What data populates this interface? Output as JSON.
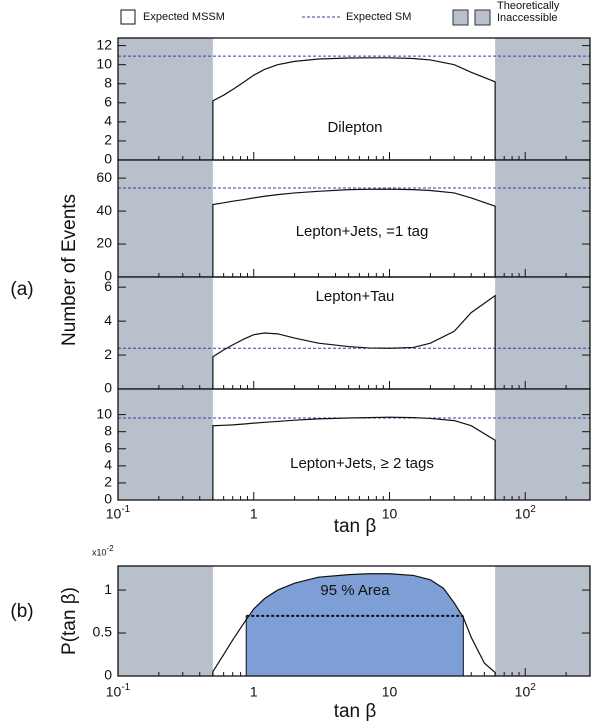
{
  "chart_data": [
    {
      "type": "line",
      "group_label": "(a)",
      "ylabel": "Number of Events",
      "xlabel": "tan β",
      "legend": {
        "mssm": "Expected MSSM",
        "sm": "Expected SM",
        "inaccessible": "Theoretically Inaccessible"
      },
      "mssm_color": "#111111",
      "sm_color": "#3b3ba8",
      "shade_color": "#b8c0cc",
      "xscale": "log",
      "xlim": [
        0.1,
        300
      ],
      "xticks": [
        {
          "value": 0.1,
          "label": "10",
          "exponent": "-1"
        },
        1,
        10,
        {
          "value": 100,
          "label": "10",
          "exponent": "2"
        }
      ],
      "inaccessible": [
        [
          0.1,
          0.5
        ],
        [
          60,
          300
        ]
      ],
      "x": [
        0.5,
        0.6,
        0.7,
        0.85,
        1,
        1.2,
        1.5,
        2,
        3,
        5,
        7,
        10,
        15,
        20,
        30,
        40,
        60
      ],
      "panels": [
        {
          "label": "Dilepton",
          "ylim": [
            0,
            12.8
          ],
          "yticks": [
            0,
            2,
            4,
            6,
            8,
            10,
            12
          ],
          "sm": 10.9,
          "values": [
            6.2,
            6.8,
            7.4,
            8.2,
            8.9,
            9.5,
            10.0,
            10.35,
            10.6,
            10.7,
            10.72,
            10.72,
            10.65,
            10.5,
            10.0,
            9.2,
            8.2
          ]
        },
        {
          "label": "Lepton+Jets, =1 tag",
          "ylim": [
            0,
            71
          ],
          "yticks": [
            0,
            20,
            40,
            60
          ],
          "sm": 54,
          "values": [
            44,
            45,
            46,
            47,
            48,
            49,
            50,
            51,
            52,
            53,
            53.2,
            53.3,
            53,
            52.5,
            51,
            48,
            43
          ]
        },
        {
          "label": "Lepton+Tau",
          "ylim": [
            0,
            6.6
          ],
          "yticks": [
            0,
            2,
            4,
            6
          ],
          "sm": 2.4,
          "values": [
            1.9,
            2.3,
            2.6,
            2.95,
            3.2,
            3.3,
            3.25,
            3.0,
            2.7,
            2.5,
            2.42,
            2.4,
            2.45,
            2.7,
            3.4,
            4.5,
            5.5
          ]
        },
        {
          "label": "Lepton+Jets, ≥ 2 tags",
          "ylim": [
            0,
            13
          ],
          "yticks": [
            0,
            2,
            4,
            6,
            8,
            10
          ],
          "sm": 9.6,
          "values": [
            8.7,
            8.75,
            8.8,
            8.9,
            9.0,
            9.1,
            9.2,
            9.35,
            9.5,
            9.6,
            9.65,
            9.7,
            9.65,
            9.55,
            9.3,
            8.7,
            7.0
          ]
        }
      ]
    },
    {
      "type": "area",
      "group_label": "(b)",
      "ylabel": "P(tan β)",
      "xlabel": "tan β",
      "y_scale_label": "x10",
      "y_scale_exponent": "-2",
      "line_color": "#111111",
      "fill_color": "#7d9fd5",
      "shade_color": "#b8c0cc",
      "xscale": "log",
      "xlim": [
        0.1,
        300
      ],
      "xticks": [
        {
          "value": 0.1,
          "label": "10",
          "exponent": "-1"
        },
        1,
        10,
        {
          "value": 100,
          "label": "10",
          "exponent": "2"
        }
      ],
      "inaccessible": [
        [
          0.1,
          0.5
        ],
        [
          60,
          300
        ]
      ],
      "ylim": [
        0,
        1.28
      ],
      "yticks": [
        0,
        0.5,
        1
      ],
      "x": [
        0.5,
        0.6,
        0.7,
        0.85,
        1,
        1.2,
        1.5,
        2,
        3,
        5,
        7,
        10,
        15,
        20,
        25,
        30,
        35,
        40,
        50,
        60
      ],
      "values": [
        0.05,
        0.25,
        0.42,
        0.62,
        0.78,
        0.9,
        1.0,
        1.08,
        1.15,
        1.18,
        1.19,
        1.19,
        1.17,
        1.12,
        1.02,
        0.85,
        0.68,
        0.45,
        0.15,
        0.04
      ],
      "area_label": "95 % Area",
      "area_range": [
        0.88,
        35
      ],
      "area_level": 0.7
    }
  ]
}
